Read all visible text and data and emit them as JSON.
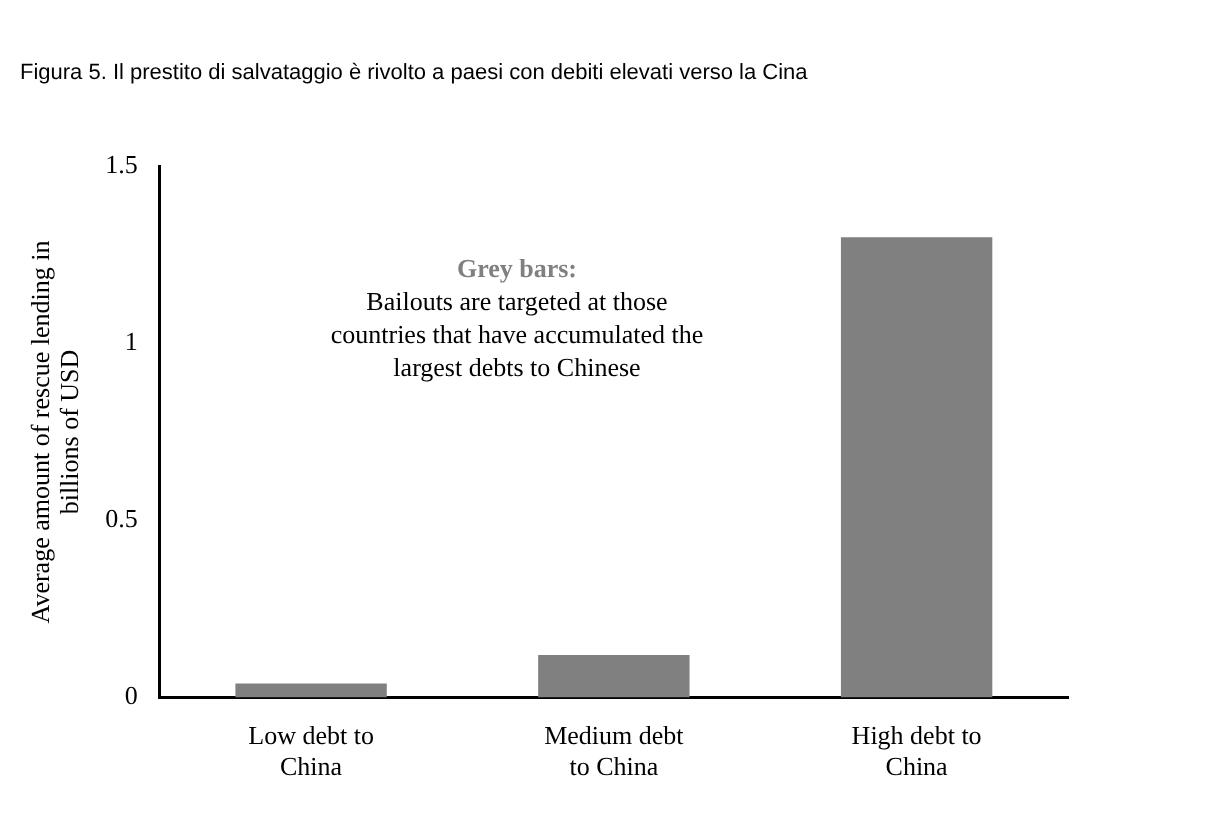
{
  "chart_data": {
    "type": "bar",
    "title": "Figura 5. Il prestito di salvataggio è rivolto a paesi con debiti elevati verso la Cina",
    "ylabel": "Average amount of rescue lending in billions of USD",
    "categories": [
      "Low debt to China",
      "Medium debt to China",
      "High debt to China"
    ],
    "values": [
      0.04,
      0.12,
      1.3
    ],
    "color": "#808080",
    "ylim": [
      0,
      1.5
    ],
    "yticks": [
      0,
      0.5,
      1,
      1.5
    ],
    "grid": false,
    "annotations": [
      "Grey bars:",
      "Bailouts are targeted at those countries that have accumulated the largest debts to Chinese"
    ]
  }
}
